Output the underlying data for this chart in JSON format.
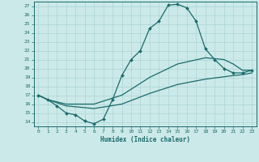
{
  "xlabel": "Humidex (Indice chaleur)",
  "bg_color": "#cce9e9",
  "line_color": "#1a6b6b",
  "grid_color": "#aad4d4",
  "xlim": [
    -0.5,
    23.5
  ],
  "ylim": [
    13.5,
    27.5
  ],
  "xticks": [
    0,
    1,
    2,
    3,
    4,
    5,
    6,
    7,
    8,
    9,
    10,
    11,
    12,
    13,
    14,
    15,
    16,
    17,
    18,
    19,
    20,
    21,
    22,
    23
  ],
  "yticks": [
    14,
    15,
    16,
    17,
    18,
    19,
    20,
    21,
    22,
    23,
    24,
    25,
    26,
    27
  ],
  "series1_x": [
    0,
    1,
    2,
    3,
    4,
    5,
    6,
    7,
    8,
    9,
    10,
    11,
    12,
    13,
    14,
    15,
    16,
    17,
    18,
    19,
    20,
    21,
    22,
    23
  ],
  "series1_y": [
    17.0,
    16.5,
    15.8,
    15.0,
    14.8,
    14.1,
    13.8,
    14.3,
    16.5,
    19.2,
    21.0,
    22.0,
    24.5,
    25.3,
    27.1,
    27.2,
    26.8,
    25.3,
    22.2,
    21.0,
    20.0,
    19.5,
    19.5,
    19.8
  ],
  "series2_x": [
    0,
    1,
    3,
    6,
    9,
    12,
    15,
    18,
    20,
    21,
    22,
    23
  ],
  "series2_y": [
    17.0,
    16.5,
    16.0,
    16.0,
    17.0,
    19.0,
    20.5,
    21.2,
    21.0,
    20.5,
    19.8,
    19.8
  ],
  "series3_x": [
    0,
    1,
    3,
    6,
    9,
    12,
    15,
    18,
    21,
    22,
    23
  ],
  "series3_y": [
    17.0,
    16.5,
    15.8,
    15.5,
    16.0,
    17.2,
    18.2,
    18.8,
    19.2,
    19.3,
    19.5
  ]
}
